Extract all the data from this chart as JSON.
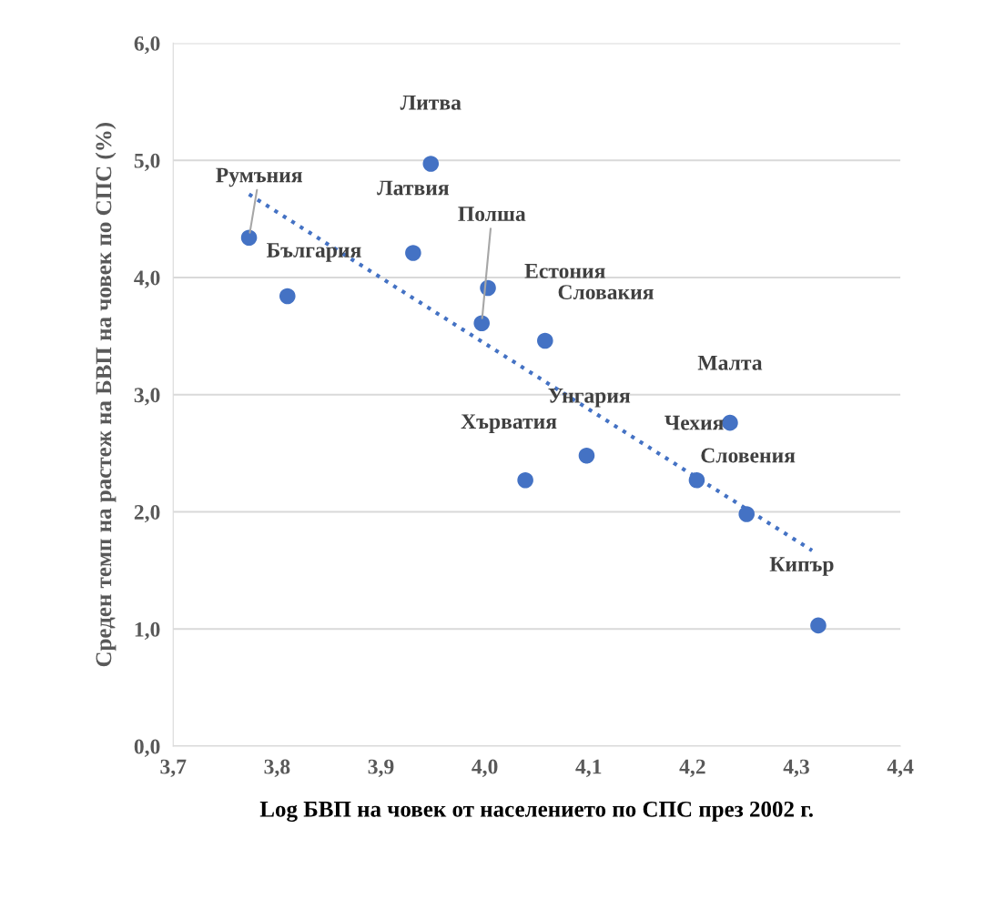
{
  "chart_data": {
    "type": "scatter",
    "xlabel": "Log БВП на човек от населението по СПС през 2002 г.",
    "ylabel": "Среден темп на растеж на БВП на човек по СПС (%)",
    "series": [
      {
        "color": "#4472c4",
        "marker": "circle",
        "x": [
          3.948,
          3.773,
          3.931,
          3.997,
          4.003,
          3.81,
          4.058,
          4.236,
          4.098,
          4.039,
          4.204,
          4.252,
          4.321
        ],
        "values": [
          4.97,
          4.34,
          4.21,
          3.61,
          3.91,
          3.84,
          3.46,
          2.76,
          2.48,
          2.27,
          2.27,
          1.98,
          1.03
        ]
      },
      {
        "type": "line",
        "color": "#4472c4",
        "line_style": "dotted",
        "x": [
          3.773,
          4.315
        ],
        "values": [
          4.71,
          1.67
        ]
      }
    ],
    "annotations": [
      {
        "text": "Литва",
        "x": 3.948,
        "y": 4.97
      },
      {
        "text": "Румъния",
        "x": 3.773,
        "y": 4.34
      },
      {
        "text": "Латвия",
        "x": 3.931,
        "y": 4.21
      },
      {
        "text": "Полша",
        "x": 3.997,
        "y": 3.61
      },
      {
        "text": "Естония",
        "x": 4.003,
        "y": 3.91
      },
      {
        "text": "България",
        "x": 3.81,
        "y": 3.84
      },
      {
        "text": "Словакия",
        "x": 4.058,
        "y": 3.46
      },
      {
        "text": "Малта",
        "x": 4.236,
        "y": 2.76
      },
      {
        "text": "Унгария",
        "x": 4.098,
        "y": 2.48
      },
      {
        "text": "Хърватия",
        "x": 4.039,
        "y": 2.27
      },
      {
        "text": "Чехия",
        "x": 4.204,
        "y": 2.27
      },
      {
        "text": "Словения",
        "x": 4.252,
        "y": 1.98
      },
      {
        "text": "Кипър",
        "x": 4.321,
        "y": 1.03
      }
    ],
    "xlim": [
      3.7,
      4.4
    ],
    "xticks": [
      {
        "value": 3.7,
        "label": "3,7"
      },
      {
        "value": 3.8,
        "label": "3,8"
      },
      {
        "value": 3.9,
        "label": "3,9"
      },
      {
        "value": 4.0,
        "label": "4,0"
      },
      {
        "value": 4.1,
        "label": "4,1"
      },
      {
        "value": 4.2,
        "label": "4,2"
      },
      {
        "value": 4.3,
        "label": "4,3"
      },
      {
        "value": 4.4,
        "label": "4,4"
      }
    ],
    "ylim": [
      0,
      6
    ],
    "yticks": [
      {
        "value": 0,
        "label": "0,0"
      },
      {
        "value": 1,
        "label": "1,0"
      },
      {
        "value": 2,
        "label": "2,0"
      },
      {
        "value": 3,
        "label": "3,0"
      },
      {
        "value": 4,
        "label": "4,0"
      },
      {
        "value": 5,
        "label": "5,0"
      },
      {
        "value": 6,
        "label": "6,0"
      }
    ],
    "grid": "y",
    "legend": false
  }
}
